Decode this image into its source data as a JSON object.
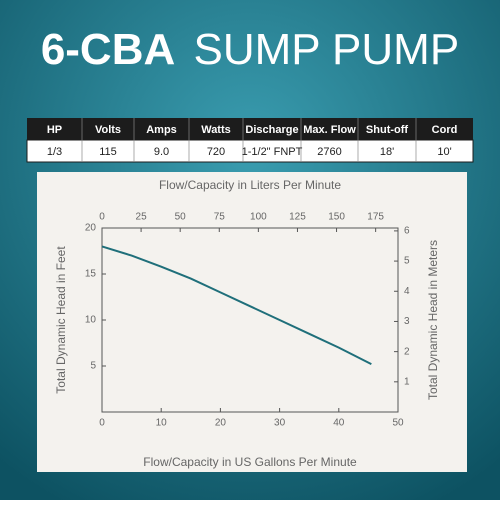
{
  "header": {
    "title_bold": "6-CBA",
    "title_light": "SUMP PUMP"
  },
  "table": {
    "headers": [
      "HP",
      "Volts",
      "Amps",
      "Watts",
      "Discharge",
      "Max. Flow",
      "Shut-off",
      "Cord"
    ],
    "rows": [
      [
        "1/3",
        "115",
        "9.0",
        "720",
        "1-1/2\" FNPT",
        "2760",
        "18'",
        "10'"
      ]
    ]
  },
  "chart_data": {
    "type": "line",
    "x_label": "Flow/Capacity in US Gallons Per Minute",
    "x2_label": "Flow/Capacity in Liters Per Minute",
    "y_label": "Total Dynamic Head in Feet",
    "y2_label": "Total Dynamic Head in Meters",
    "x": [
      0,
      5,
      10,
      15,
      20,
      25,
      30,
      35,
      40,
      45.5
    ],
    "values": [
      18,
      17,
      15.8,
      14.5,
      13,
      11.5,
      10,
      8.5,
      7,
      5.2
    ],
    "color": "#1f6f7a",
    "xlim": [
      0,
      50
    ],
    "xticks": [
      0,
      10,
      20,
      30,
      40,
      50
    ],
    "x2lim": [
      0,
      189.3
    ],
    "x2ticks": [
      0,
      25,
      50,
      75,
      100,
      125,
      150,
      175
    ],
    "ylim": [
      0,
      20
    ],
    "yticks": [
      5,
      10,
      15,
      20
    ],
    "y2lim": [
      0,
      6.096
    ],
    "y2ticks": [
      1,
      2,
      3,
      4,
      5,
      6
    ],
    "grid": false
  }
}
